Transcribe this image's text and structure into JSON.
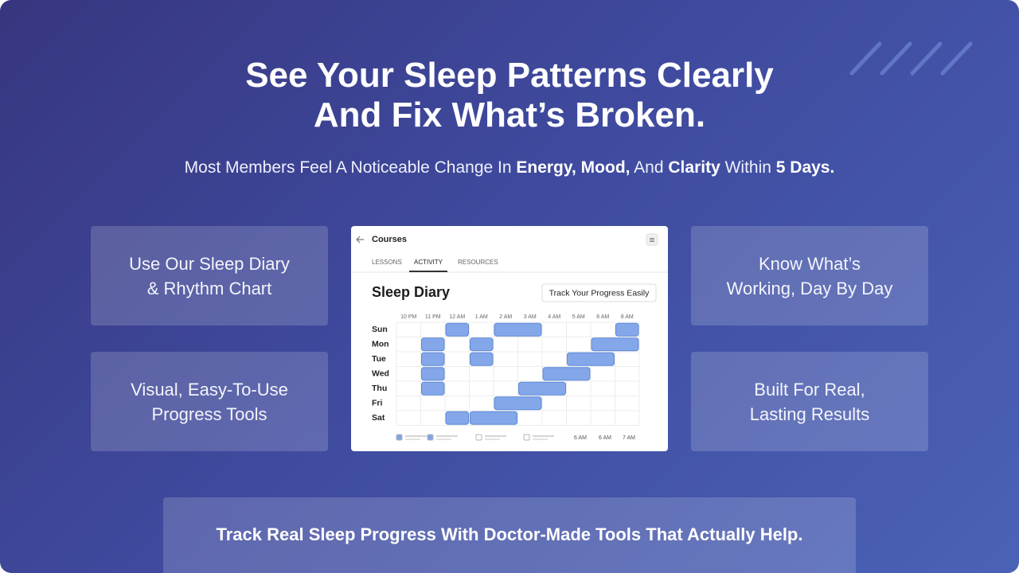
{
  "header": {
    "title_lines": [
      "See Your Sleep Patterns Clearly",
      "And Fix What’s Broken."
    ],
    "subtitle": [
      {
        "text": "Most Members Feel A Noticeable Change In ",
        "bold": false
      },
      {
        "text": "Energy, Mood,",
        "bold": true
      },
      {
        "text": " And ",
        "bold": false
      },
      {
        "text": "Clarity",
        "bold": true
      },
      {
        "text": " Within ",
        "bold": false
      },
      {
        "text": "5 Days.",
        "bold": true
      }
    ]
  },
  "features": [
    {
      "lines": [
        "Use Our Sleep Diary",
        "& Rhythm Chart"
      ]
    },
    {
      "lines": [
        "Visual, Easy-To-Use",
        "Progress Tools"
      ]
    },
    {
      "lines": [
        "Know What’s",
        "Working, Day By Day"
      ]
    },
    {
      "lines": [
        "Built For Real,",
        "Lasting Results"
      ]
    }
  ],
  "app": {
    "nav_title": "Courses",
    "tabs": [
      "LESSONS",
      "ACTIVITY",
      "RESOURCES"
    ],
    "active_tab": 1,
    "heading": "Sleep Diary",
    "button": "Track Your Progress Easily",
    "hours": [
      "10 PM",
      "11 PM",
      "12 AM",
      "1 AM",
      "2 AM",
      "3 AM",
      "4 AM",
      "5 AM",
      "6 AM",
      "8 AM"
    ],
    "days": [
      {
        "label": "Sun",
        "blocks": [
          [
            2,
            3
          ],
          [
            4,
            6
          ],
          [
            9,
            10
          ]
        ]
      },
      {
        "label": "Mon",
        "blocks": [
          [
            1,
            2
          ],
          [
            3,
            4
          ],
          [
            8,
            10
          ]
        ]
      },
      {
        "label": "Tue",
        "blocks": [
          [
            1,
            2
          ],
          [
            3,
            4
          ],
          [
            7,
            9
          ]
        ]
      },
      {
        "label": "Wed",
        "blocks": [
          [
            1,
            2
          ],
          [
            6,
            8
          ]
        ]
      },
      {
        "label": "Thu",
        "blocks": [
          [
            1,
            2
          ],
          [
            5,
            7
          ]
        ]
      },
      {
        "label": "Fri",
        "blocks": [
          [
            4,
            6
          ]
        ]
      },
      {
        "label": "Sat",
        "blocks": [
          [
            2,
            3
          ],
          [
            3,
            5
          ]
        ]
      }
    ],
    "legend_labels": [
      "6 AM",
      "6 AM",
      "7 AM"
    ]
  },
  "footer": {
    "text": "Track Real Sleep Progress With Doctor-Made Tools That Actually Help."
  }
}
